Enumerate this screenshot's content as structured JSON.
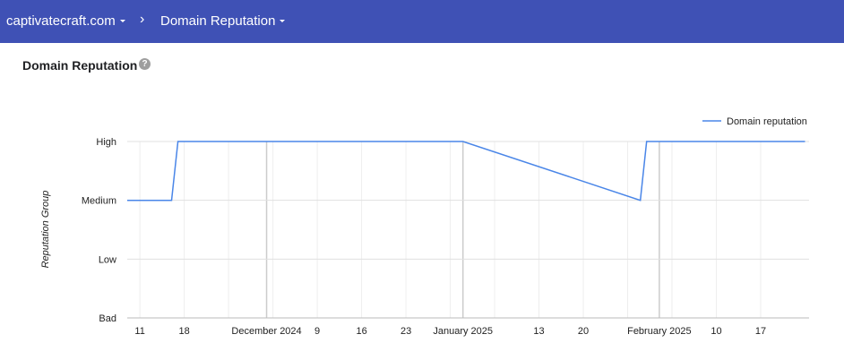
{
  "header": {
    "domain": "captivatecraft.com",
    "separator": "›",
    "page": "Domain Reputation"
  },
  "page_title": "Domain Reputation",
  "help_icon": "help-icon",
  "colors": {
    "header_bg": "#3f51b5",
    "series": "#4a86e8"
  },
  "chart_data": {
    "type": "line",
    "ylabel": "Reputation Group",
    "y_categories": [
      "Bad",
      "Low",
      "Medium",
      "High"
    ],
    "x_tick_labels": [
      "11",
      "18",
      "December 2024",
      "9",
      "16",
      "23",
      "January 2025",
      "13",
      "20",
      "February 2025",
      "10",
      "17"
    ],
    "legend_position": "top-right",
    "grid": true,
    "series": [
      {
        "name": "Domain reputation",
        "points": [
          {
            "x": "2024-11-09",
            "y": "Medium"
          },
          {
            "x": "2024-11-16",
            "y": "Medium"
          },
          {
            "x": "2024-11-17",
            "y": "High"
          },
          {
            "x": "2025-01-01",
            "y": "High"
          },
          {
            "x": "2025-01-29",
            "y": "Medium"
          },
          {
            "x": "2025-01-30",
            "y": "High"
          },
          {
            "x": "2025-02-24",
            "y": "High"
          }
        ]
      }
    ]
  }
}
